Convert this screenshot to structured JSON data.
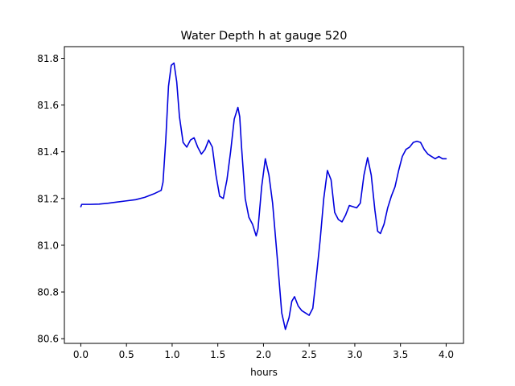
{
  "chart_data": {
    "type": "line",
    "title": "Water Depth h at gauge 520",
    "xlabel": "hours",
    "ylabel": "",
    "xlim": [
      -0.18,
      4.19
    ],
    "ylim": [
      80.58,
      81.85
    ],
    "x_ticks": [
      0.0,
      0.5,
      1.0,
      1.5,
      2.0,
      2.5,
      3.0,
      3.5,
      4.0
    ],
    "x_tick_labels": [
      "0.0",
      "0.5",
      "1.0",
      "1.5",
      "2.0",
      "2.5",
      "3.0",
      "3.5",
      "4.0"
    ],
    "y_ticks": [
      80.6,
      80.8,
      81.0,
      81.2,
      81.4,
      81.6,
      81.8
    ],
    "y_tick_labels": [
      "80.6",
      "80.8",
      "81.0",
      "81.2",
      "81.4",
      "81.6",
      "81.8"
    ],
    "grid": false,
    "legend": "none",
    "series": [
      {
        "color": "#0000dd",
        "x": [
          0.0,
          0.01,
          0.1,
          0.2,
          0.3,
          0.4,
          0.5,
          0.6,
          0.7,
          0.8,
          0.88,
          0.9,
          0.93,
          0.96,
          0.99,
          1.02,
          1.05,
          1.08,
          1.12,
          1.16,
          1.2,
          1.24,
          1.28,
          1.32,
          1.36,
          1.4,
          1.44,
          1.48,
          1.52,
          1.56,
          1.6,
          1.64,
          1.68,
          1.72,
          1.74,
          1.76,
          1.8,
          1.84,
          1.88,
          1.92,
          1.94,
          1.98,
          2.02,
          2.06,
          2.1,
          2.15,
          2.2,
          2.24,
          2.28,
          2.31,
          2.34,
          2.38,
          2.42,
          2.46,
          2.5,
          2.54,
          2.58,
          2.62,
          2.66,
          2.7,
          2.74,
          2.78,
          2.82,
          2.86,
          2.9,
          2.94,
          2.98,
          3.02,
          3.06,
          3.1,
          3.14,
          3.18,
          3.22,
          3.25,
          3.28,
          3.32,
          3.36,
          3.4,
          3.44,
          3.48,
          3.52,
          3.56,
          3.6,
          3.64,
          3.68,
          3.72,
          3.76,
          3.8,
          3.84,
          3.88,
          3.92,
          3.96,
          4.0
        ],
        "y": [
          81.165,
          81.175,
          81.175,
          81.176,
          81.18,
          81.185,
          81.19,
          81.195,
          81.205,
          81.22,
          81.235,
          81.27,
          81.45,
          81.68,
          81.77,
          81.78,
          81.7,
          81.55,
          81.44,
          81.42,
          81.45,
          81.46,
          81.42,
          81.39,
          81.41,
          81.45,
          81.42,
          81.3,
          81.21,
          81.2,
          81.28,
          81.4,
          81.54,
          81.59,
          81.55,
          81.42,
          81.2,
          81.12,
          81.09,
          81.04,
          81.07,
          81.25,
          81.37,
          81.3,
          81.18,
          80.95,
          80.71,
          80.64,
          80.69,
          80.76,
          80.78,
          80.74,
          80.72,
          80.71,
          80.7,
          80.73,
          80.87,
          81.02,
          81.2,
          81.32,
          81.28,
          81.14,
          81.11,
          81.1,
          81.13,
          81.17,
          81.165,
          81.16,
          81.18,
          81.3,
          81.375,
          81.3,
          81.15,
          81.06,
          81.05,
          81.09,
          81.16,
          81.21,
          81.25,
          81.32,
          81.38,
          81.41,
          81.42,
          81.44,
          81.445,
          81.44,
          81.41,
          81.39,
          81.38,
          81.37,
          81.38,
          81.37,
          81.37
        ]
      }
    ]
  }
}
